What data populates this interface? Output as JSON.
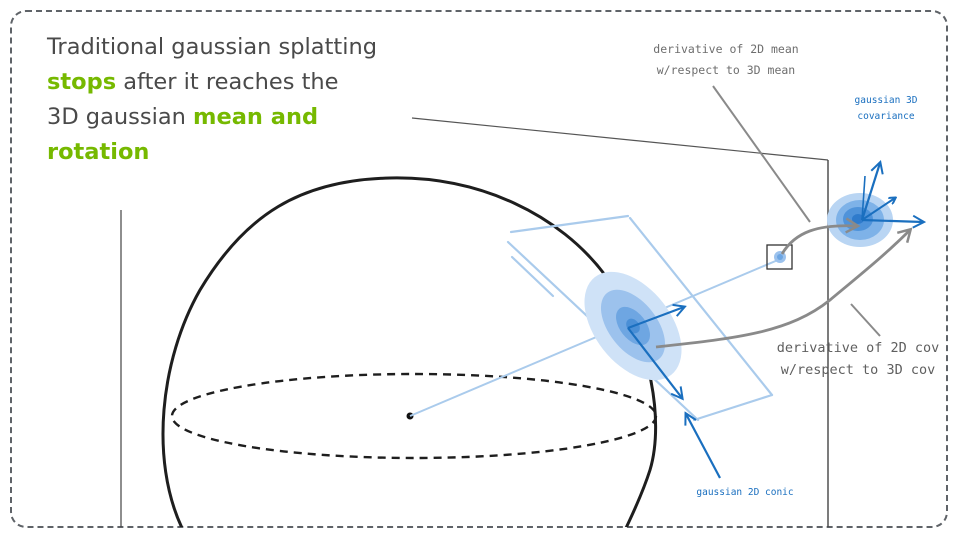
{
  "headline": {
    "part1": "Traditional gaussian splatting ",
    "highlight1": "stops",
    "part2": " after it reaches the 3D gaussian ",
    "highlight2": "mean and rotation"
  },
  "labels": {
    "mean_derivative": [
      "derivative of 2D mean",
      "w/respect to 3D mean"
    ],
    "covariance_3d": [
      "gaussian 3D",
      "covariance"
    ],
    "cov_derivative": [
      "derivative of 2D cov",
      "w/respect to 3D cov"
    ],
    "conic_2d": "gaussian 2D conic"
  },
  "colors": {
    "text": "#4a4a4a",
    "highlight": "#76b900",
    "blue": "#1a6fbf",
    "light_blue": "#aacbec",
    "gray_arrow": "#888888"
  }
}
